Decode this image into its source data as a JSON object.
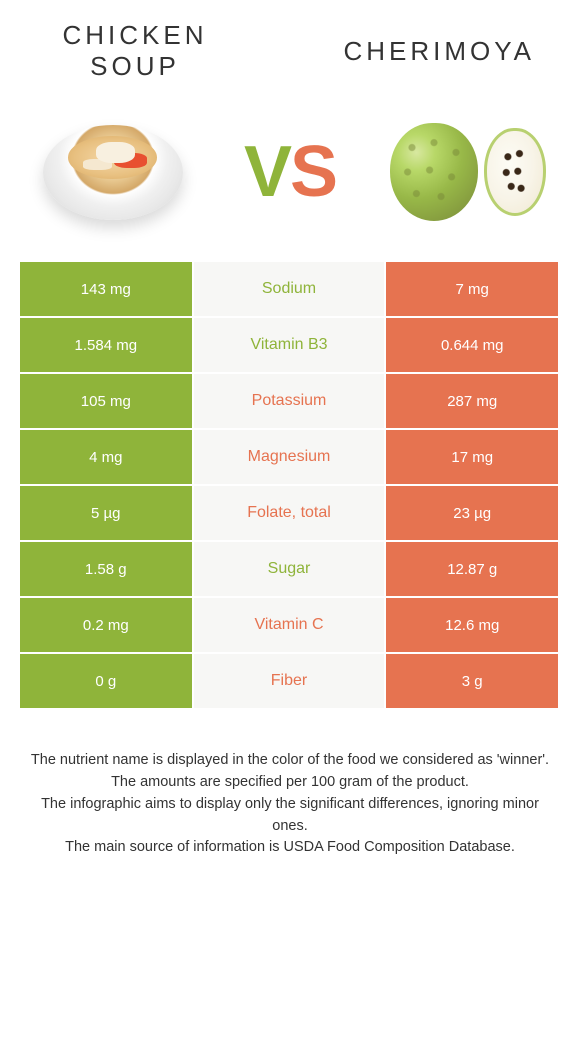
{
  "left_food": {
    "title": "CHICKEN SOUP",
    "color": "#8fb43a"
  },
  "right_food": {
    "title": "CHERIMOYA",
    "color": "#e67350"
  },
  "vs": {
    "v": "V",
    "s": "S"
  },
  "rows": [
    {
      "name": "Sodium",
      "left": "143 mg",
      "right": "7 mg",
      "winner": "left"
    },
    {
      "name": "Vitamin B3",
      "left": "1.584 mg",
      "right": "0.644 mg",
      "winner": "left"
    },
    {
      "name": "Potassium",
      "left": "105 mg",
      "right": "287 mg",
      "winner": "right"
    },
    {
      "name": "Magnesium",
      "left": "4 mg",
      "right": "17 mg",
      "winner": "right"
    },
    {
      "name": "Folate, total",
      "left": "5 µg",
      "right": "23 µg",
      "winner": "right"
    },
    {
      "name": "Sugar",
      "left": "1.58 g",
      "right": "12.87 g",
      "winner": "left"
    },
    {
      "name": "Vitamin C",
      "left": "0.2 mg",
      "right": "12.6 mg",
      "winner": "right"
    },
    {
      "name": "Fiber",
      "left": "0 g",
      "right": "3 g",
      "winner": "right"
    }
  ],
  "colors": {
    "green": "#8fb43a",
    "orange": "#e67350",
    "mid_bg": "#f7f7f5",
    "page_bg": "#ffffff"
  },
  "footer": {
    "line1": "The nutrient name is displayed in the color of the food we considered as 'winner'.",
    "line2": "The amounts are specified per 100 gram of the product.",
    "line3": "The infographic aims to display only the significant differences, ignoring minor ones.",
    "line4": "The main source of information is USDA Food Composition Database."
  }
}
